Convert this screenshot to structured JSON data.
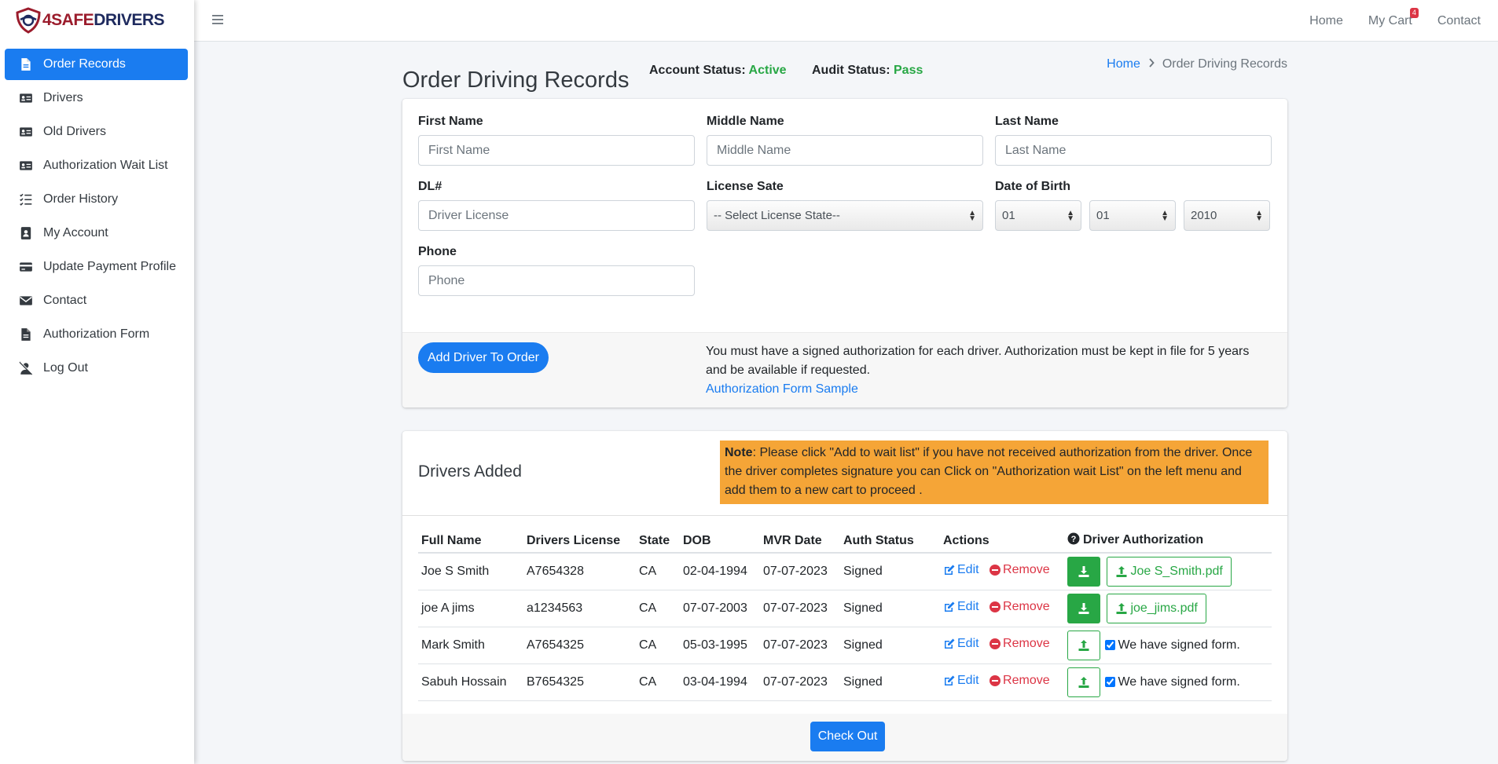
{
  "brand": {
    "part1": "4SAFE",
    "part2": "DRIVERS"
  },
  "sidebar": {
    "items": [
      {
        "label": "Order Records",
        "icon": "file-icon",
        "active": true
      },
      {
        "label": "Drivers",
        "icon": "id-card-icon"
      },
      {
        "label": "Old Drivers",
        "icon": "id-card-icon"
      },
      {
        "label": "Authorization Wait List",
        "icon": "id-card-icon"
      },
      {
        "label": "Order History",
        "icon": "list-check-icon"
      },
      {
        "label": "My Account",
        "icon": "contact-book-icon"
      },
      {
        "label": "Update Payment Profile",
        "icon": "credit-card-icon"
      },
      {
        "label": "Contact",
        "icon": "envelope-icon"
      },
      {
        "label": "Authorization Form",
        "icon": "file-icon"
      },
      {
        "label": "Log Out",
        "icon": "user-slash-icon"
      }
    ]
  },
  "topbar": {
    "home": "Home",
    "cart": "My Cart",
    "cart_count": "4",
    "contact": "Contact"
  },
  "header": {
    "title": "Order Driving Records",
    "account_status_label": "Account Status:",
    "account_status_value": "Active",
    "audit_status_label": "Audit Status:",
    "audit_status_value": "Pass",
    "breadcrumb_home": "Home",
    "breadcrumb_current": "Order Driving Records"
  },
  "form": {
    "first_name": {
      "label": "First Name",
      "placeholder": "First Name"
    },
    "middle_name": {
      "label": "Middle Name",
      "placeholder": "Middle Name"
    },
    "last_name": {
      "label": "Last Name",
      "placeholder": "Last Name"
    },
    "dl": {
      "label": "DL#",
      "placeholder": "Driver License"
    },
    "license_state": {
      "label": "License Sate",
      "value": "-- Select License State--"
    },
    "dob": {
      "label": "Date of Birth",
      "month": "01",
      "day": "01",
      "year": "2010"
    },
    "phone": {
      "label": "Phone",
      "placeholder": "Phone"
    },
    "add_button": "Add Driver To Order",
    "auth_note": "You must have a signed authorization for each driver. Authorization must be kept in file for 5 years and be available if requested.",
    "auth_link": "Authorization Form Sample"
  },
  "drivers": {
    "title": "Drivers Added",
    "note_bold": "Note",
    "note_text": ": Please click \"Add to wait list\" if you have not received authorization from the driver. Once the driver completes signature you can Click on \"Authorization wait List\" on the left menu and add them to a new cart to proceed .",
    "columns": [
      "Full Name",
      "Drivers License",
      "State",
      "DOB",
      "MVR Date",
      "Auth Status",
      "Actions",
      "Driver Authorization"
    ],
    "edit_label": "Edit",
    "remove_label": "Remove",
    "signed_form_label": "We have signed form.",
    "rows": [
      {
        "name": "Joe S Smith",
        "license": "A7654328",
        "state": "CA",
        "dob": "02-04-1994",
        "mvr": "07-07-2023",
        "auth": "Signed",
        "file": "Joe S_Smith.pdf"
      },
      {
        "name": "joe A jims",
        "license": "a1234563",
        "state": "CA",
        "dob": "07-07-2003",
        "mvr": "07-07-2023",
        "auth": "Signed",
        "file": "joe_jims.pdf"
      },
      {
        "name": "Mark Smith",
        "license": "A7654325",
        "state": "CA",
        "dob": "05-03-1995",
        "mvr": "07-07-2023",
        "auth": "Signed"
      },
      {
        "name": "Sabuh Hossain",
        "license": "B7654325",
        "state": "CA",
        "dob": "03-04-1994",
        "mvr": "07-07-2023",
        "auth": "Signed"
      }
    ],
    "checkout": "Check Out"
  },
  "colors": {
    "primary": "#1a7cf0",
    "success": "#28a745",
    "danger": "#dc3545",
    "warning": "#f5a537"
  }
}
